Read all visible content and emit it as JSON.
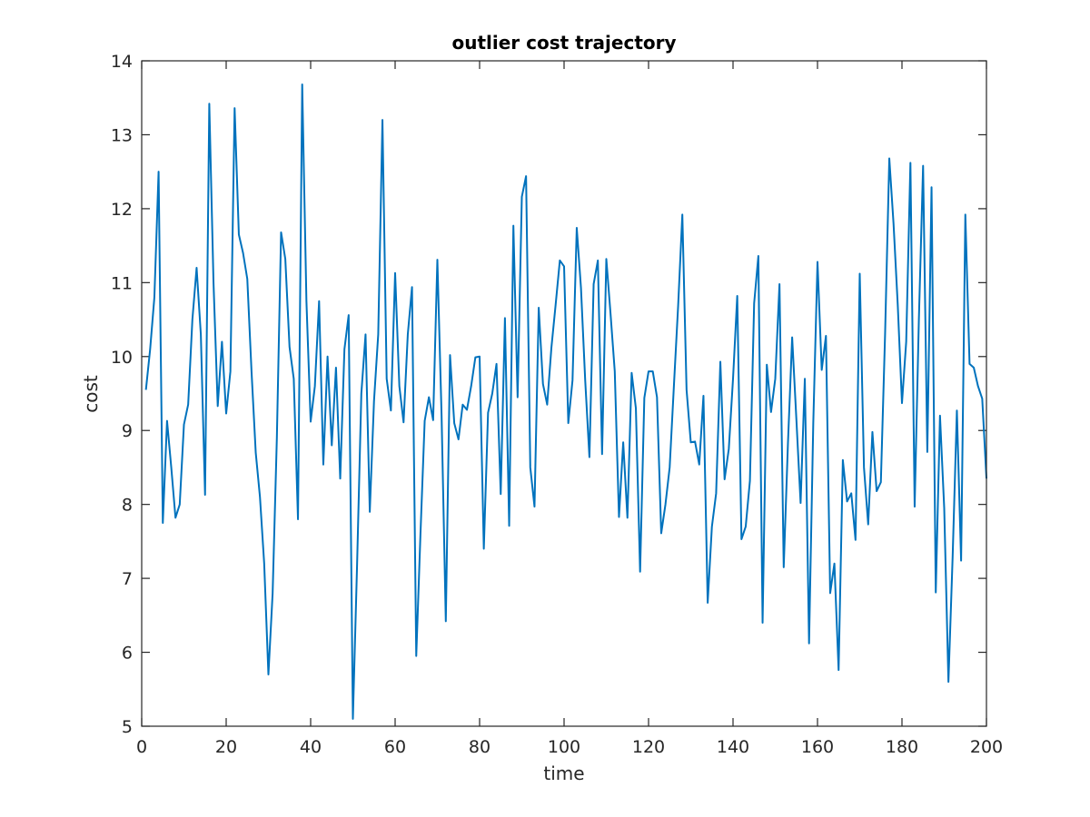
{
  "chart_data": {
    "type": "line",
    "title": "outlier cost trajectory",
    "xlabel": "time",
    "ylabel": "cost",
    "xlim": [
      0,
      200
    ],
    "ylim": [
      5,
      14
    ],
    "xticks": [
      0,
      20,
      40,
      60,
      80,
      100,
      120,
      140,
      160,
      180,
      200
    ],
    "yticks": [
      5,
      6,
      7,
      8,
      9,
      10,
      11,
      12,
      13,
      14
    ],
    "grid": false,
    "box": true,
    "line_color": "#0072BD",
    "series": [
      {
        "x": [
          1,
          2,
          3,
          4,
          5,
          6,
          7,
          8,
          9,
          10,
          11,
          12,
          13,
          14,
          15,
          16,
          17,
          18,
          19,
          20,
          21,
          22,
          23,
          24,
          25,
          26,
          27,
          28,
          29,
          30,
          31,
          32,
          33,
          34,
          35,
          36,
          37,
          38,
          39,
          40,
          41,
          42,
          43,
          44,
          45,
          46,
          47,
          48,
          49,
          50,
          51,
          52,
          53,
          54,
          55,
          56,
          57,
          58,
          59,
          60,
          61,
          62,
          63,
          64,
          65,
          66,
          67,
          68,
          69,
          70,
          71,
          72,
          73,
          74,
          75,
          76,
          77,
          78,
          79,
          80,
          81,
          82,
          83,
          84,
          85,
          86,
          87,
          88,
          89,
          90,
          91,
          92,
          93,
          94,
          95,
          96,
          97,
          98,
          99,
          100,
          101,
          102,
          103,
          104,
          105,
          106,
          107,
          108,
          109,
          110,
          111,
          112,
          113,
          114,
          115,
          116,
          117,
          118,
          119,
          120,
          121,
          122,
          123,
          124,
          125,
          126,
          127,
          128,
          129,
          130,
          131,
          132,
          133,
          134,
          135,
          136,
          137,
          138,
          139,
          140,
          141,
          142,
          143,
          144,
          145,
          146,
          147,
          148,
          149,
          150,
          151,
          152,
          153,
          154,
          155,
          156,
          157,
          158,
          159,
          160,
          161,
          162,
          163,
          164,
          165,
          166,
          167,
          168,
          169,
          170,
          171,
          172,
          173,
          174,
          175,
          176,
          177,
          178,
          179,
          180,
          181,
          182,
          183,
          184,
          185,
          186,
          187,
          188,
          189,
          190,
          191,
          192,
          193,
          194,
          195,
          196,
          197,
          198,
          199,
          200
        ],
        "y": [
          9.55,
          10.1,
          10.8,
          12.5,
          7.75,
          9.13,
          8.5,
          7.82,
          8.0,
          9.08,
          9.35,
          10.5,
          11.2,
          10.3,
          8.13,
          13.42,
          11.0,
          9.33,
          10.2,
          9.23,
          9.8,
          13.36,
          11.65,
          11.4,
          11.05,
          9.8,
          8.7,
          8.1,
          7.2,
          5.7,
          6.8,
          8.9,
          11.68,
          11.32,
          10.13,
          9.7,
          7.8,
          13.68,
          10.75,
          9.12,
          9.6,
          10.75,
          8.54,
          10.0,
          8.8,
          9.85,
          8.35,
          10.1,
          10.56,
          5.1,
          7.2,
          9.5,
          10.3,
          7.9,
          9.4,
          10.3,
          13.2,
          9.7,
          9.27,
          11.13,
          9.6,
          9.11,
          10.3,
          10.94,
          5.95,
          7.6,
          9.13,
          9.45,
          9.14,
          11.31,
          9.2,
          6.42,
          10.02,
          9.1,
          8.88,
          9.35,
          9.28,
          9.6,
          9.99,
          10.0,
          7.4,
          9.24,
          9.5,
          9.9,
          8.14,
          10.52,
          7.71,
          11.77,
          9.45,
          12.16,
          12.44,
          8.5,
          7.97,
          10.66,
          9.63,
          9.35,
          10.12,
          10.7,
          11.3,
          11.22,
          9.1,
          9.68,
          11.74,
          10.93,
          9.68,
          8.64,
          10.98,
          11.3,
          8.68,
          11.32,
          10.58,
          9.8,
          7.83,
          8.84,
          7.82,
          9.78,
          9.3,
          7.09,
          9.44,
          9.8,
          9.8,
          9.45,
          7.61,
          8.0,
          8.5,
          9.6,
          10.68,
          11.92,
          9.55,
          8.84,
          8.85,
          8.54,
          9.47,
          6.67,
          7.7,
          8.15,
          9.93,
          8.34,
          8.75,
          9.7,
          10.82,
          7.53,
          7.7,
          8.32,
          10.72,
          11.36,
          6.4,
          9.89,
          9.25,
          9.7,
          10.98,
          7.15,
          8.82,
          10.26,
          9.15,
          8.02,
          9.7,
          6.12,
          9.1,
          11.28,
          9.82,
          10.28,
          6.8,
          7.2,
          5.76,
          8.6,
          8.04,
          8.15,
          7.52,
          11.12,
          8.5,
          7.73,
          8.98,
          8.18,
          8.3,
          10.3,
          12.68,
          11.8,
          10.7,
          9.37,
          10.2,
          12.62,
          7.97,
          10.5,
          12.58,
          8.71,
          12.29,
          6.81,
          9.2,
          7.95,
          5.6,
          7.3,
          9.27,
          7.24,
          11.92,
          9.9,
          9.85,
          9.6,
          9.43,
          8.35
        ]
      }
    ]
  }
}
